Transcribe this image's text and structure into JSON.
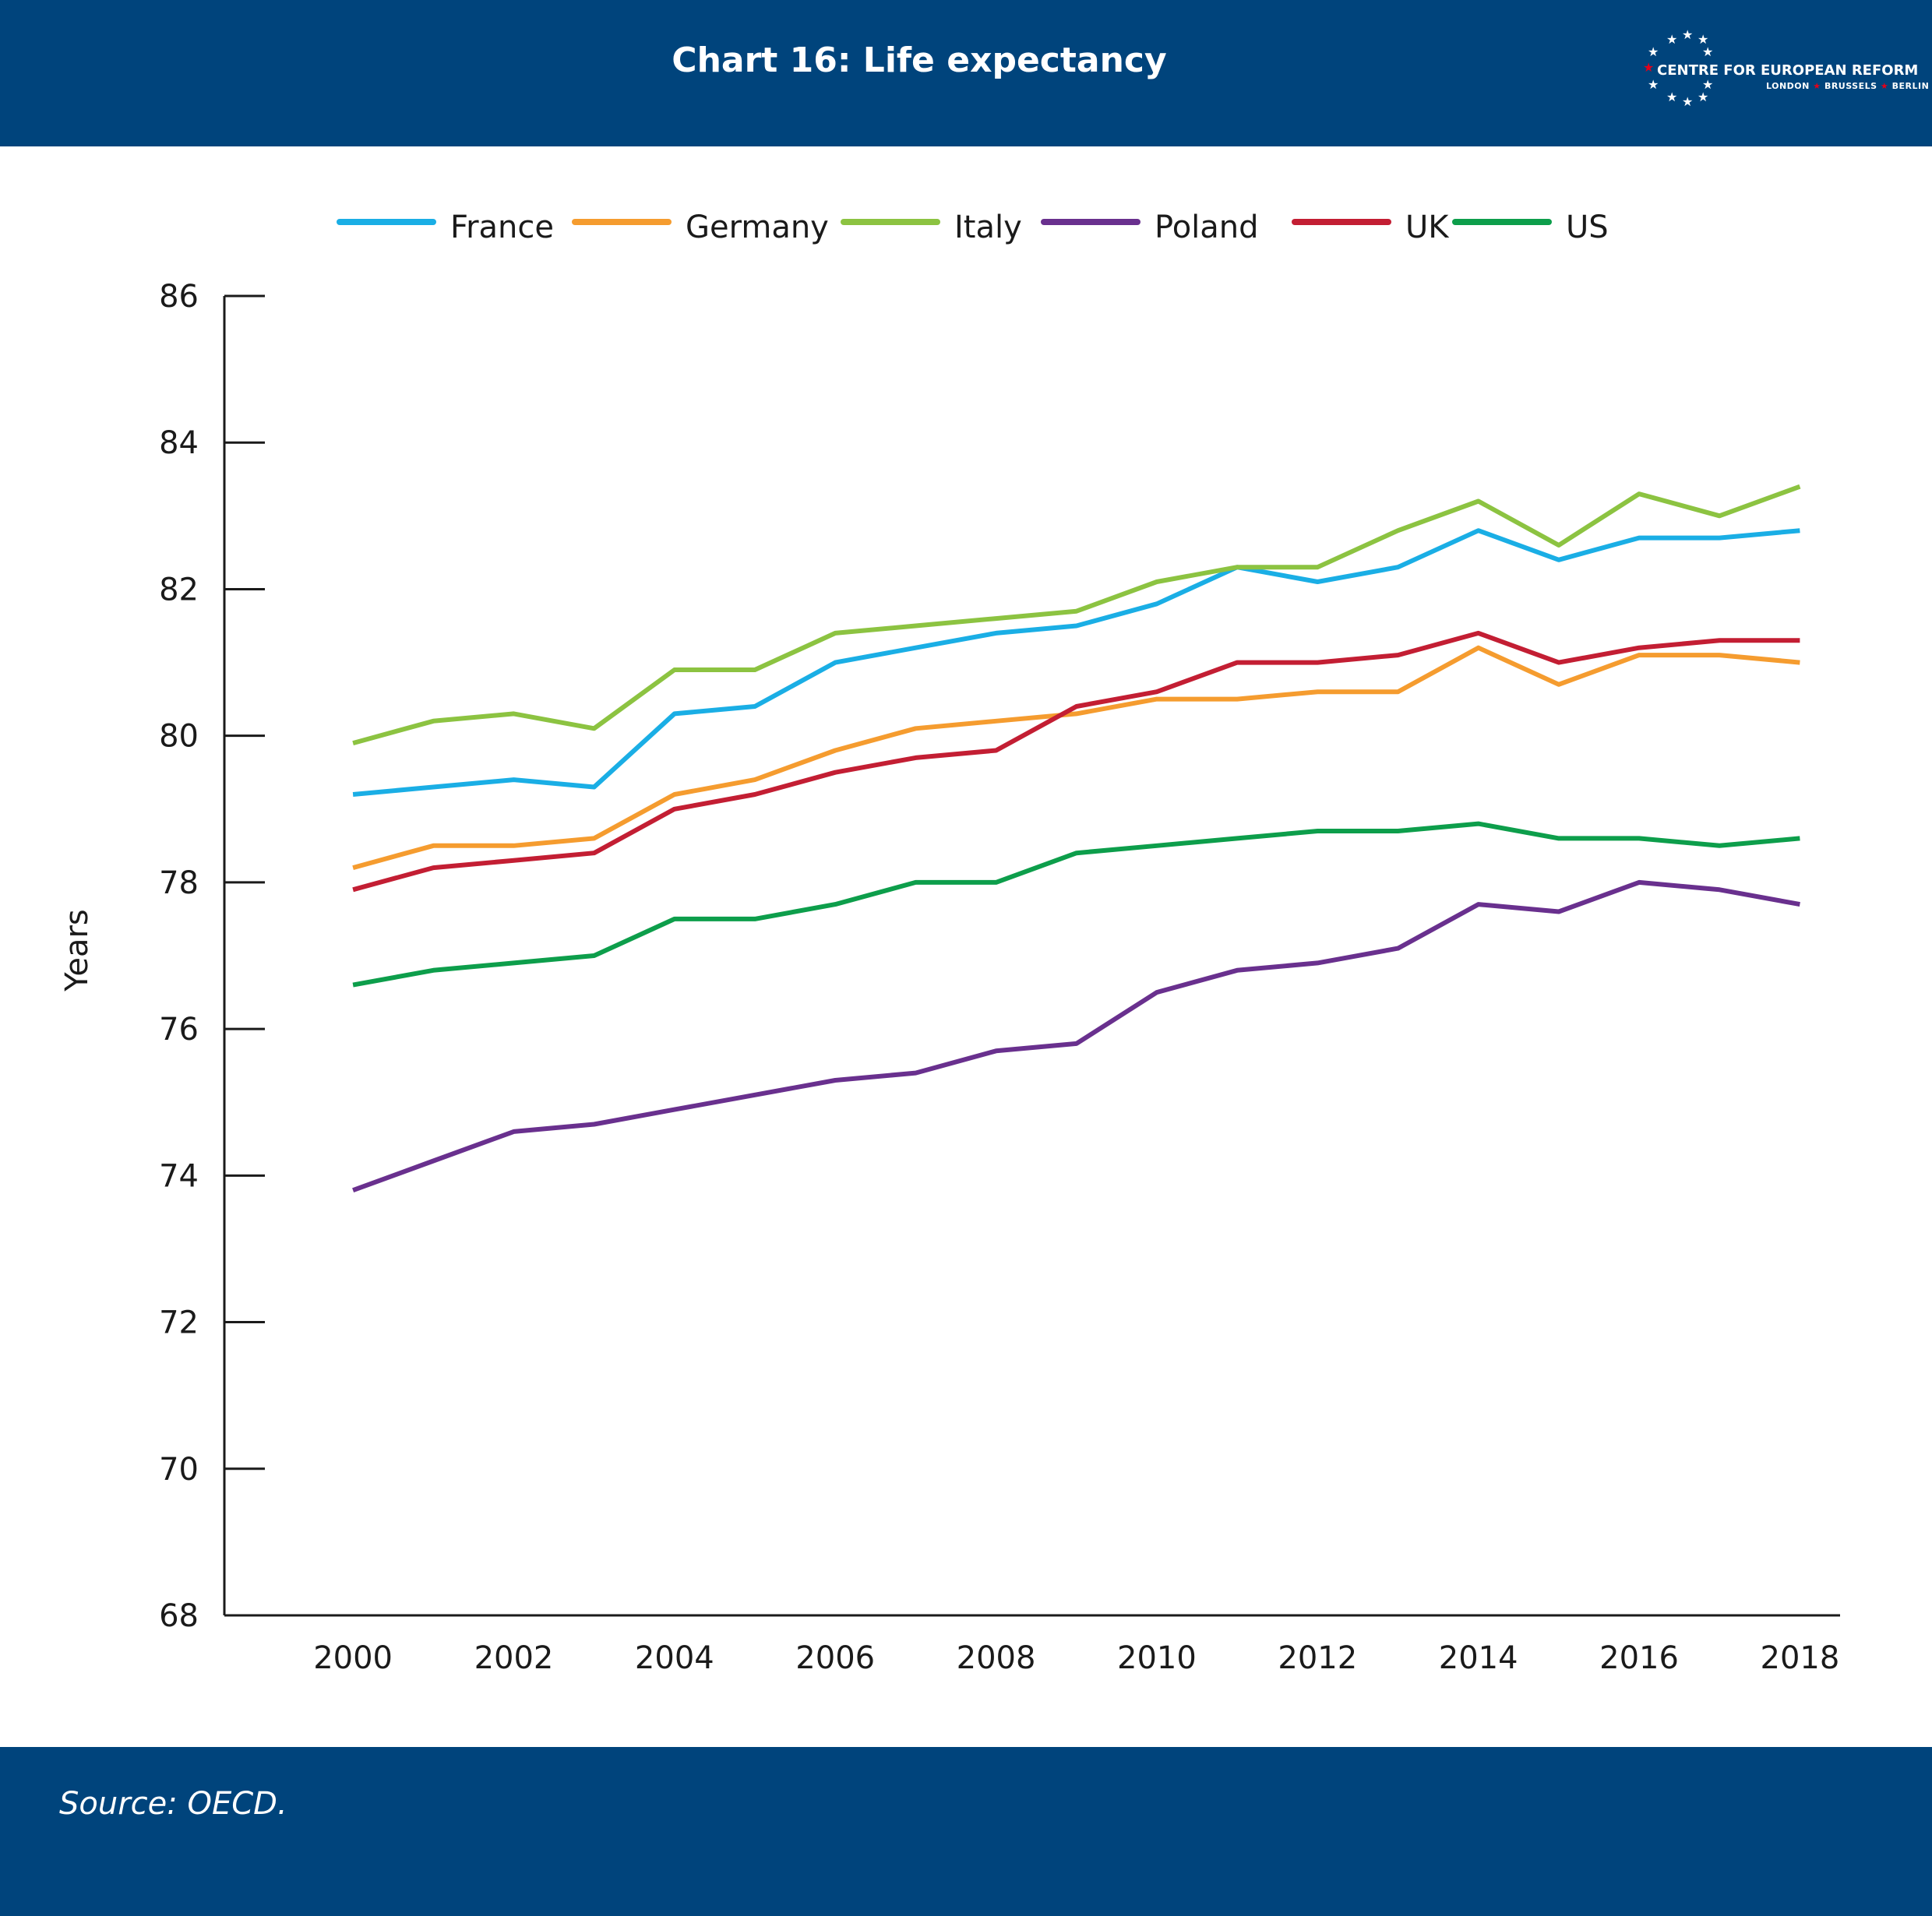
{
  "header": {
    "title": "Chart 16: Life expectancy"
  },
  "logo": {
    "name": "CENTRE FOR EUROPEAN REFORM",
    "cities": [
      "LONDON",
      "BRUSSELS",
      "BERLIN"
    ]
  },
  "footer": {
    "source": "Source: OECD."
  },
  "chart_data": {
    "type": "line",
    "title": "Chart 16: Life expectancy",
    "xlabel": "",
    "ylabel": "Years",
    "ylim": [
      68,
      86
    ],
    "yticks": [
      68,
      70,
      72,
      74,
      76,
      78,
      80,
      82,
      84,
      86
    ],
    "xlim": [
      1998.4,
      2018.5
    ],
    "xticks": [
      2000,
      2002,
      2004,
      2006,
      2008,
      2010,
      2012,
      2014,
      2016,
      2018
    ],
    "grid": false,
    "legend_position": "top",
    "x": [
      2000,
      2001,
      2002,
      2003,
      2004,
      2005,
      2006,
      2007,
      2008,
      2009,
      2010,
      2011,
      2012,
      2013,
      2014,
      2015,
      2016,
      2017,
      2018
    ],
    "series": [
      {
        "name": "France",
        "color": "#1aaee5",
        "values": [
          79.2,
          79.3,
          79.4,
          79.3,
          80.3,
          80.4,
          81.0,
          81.2,
          81.4,
          81.5,
          81.8,
          82.3,
          82.1,
          82.3,
          82.8,
          82.4,
          82.7,
          82.7,
          82.8
        ]
      },
      {
        "name": "Germany",
        "color": "#f59c2f",
        "values": [
          78.2,
          78.5,
          78.5,
          78.6,
          79.2,
          79.4,
          79.8,
          80.1,
          80.2,
          80.3,
          80.5,
          80.5,
          80.6,
          80.6,
          81.2,
          80.7,
          81.1,
          81.1,
          81.0
        ]
      },
      {
        "name": "Italy",
        "color": "#8cc341",
        "values": [
          79.9,
          80.2,
          80.3,
          80.1,
          80.9,
          80.9,
          81.4,
          81.5,
          81.6,
          81.7,
          82.1,
          82.3,
          82.3,
          82.8,
          83.2,
          82.6,
          83.3,
          83.0,
          83.4
        ]
      },
      {
        "name": "Poland",
        "color": "#69308e",
        "values": [
          73.8,
          74.2,
          74.6,
          74.7,
          74.9,
          75.1,
          75.3,
          75.4,
          75.7,
          75.8,
          76.5,
          76.8,
          76.9,
          77.1,
          77.7,
          77.6,
          78.0,
          77.9,
          77.7
        ]
      },
      {
        "name": "UK",
        "color": "#c31e33",
        "values": [
          77.9,
          78.2,
          78.3,
          78.4,
          79.0,
          79.2,
          79.5,
          79.7,
          79.8,
          80.4,
          80.6,
          81.0,
          81.0,
          81.1,
          81.4,
          81.0,
          81.2,
          81.3,
          81.3
        ]
      },
      {
        "name": "US",
        "color": "#0d9e4b",
        "values": [
          76.6,
          76.8,
          76.9,
          77.0,
          77.5,
          77.5,
          77.7,
          78.0,
          78.0,
          78.4,
          78.5,
          78.6,
          78.7,
          78.7,
          78.8,
          78.6,
          78.6,
          78.5,
          78.6
        ]
      }
    ]
  }
}
